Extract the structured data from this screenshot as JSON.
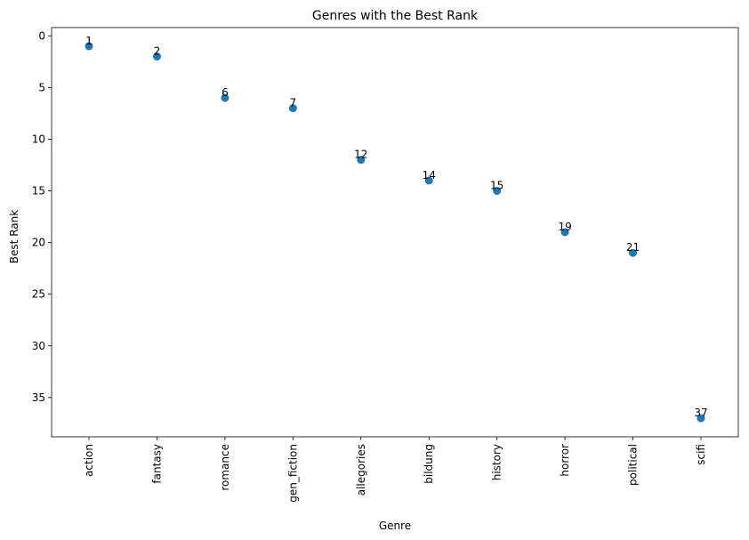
{
  "chart_data": {
    "type": "scatter",
    "title": "Genres with the Best Rank",
    "xlabel": "Genre",
    "ylabel": "Best Rank",
    "categories": [
      "action",
      "fantasy",
      "romance",
      "gen_fiction",
      "allegories",
      "bildung",
      "history",
      "horror",
      "political",
      "scifi"
    ],
    "values": [
      1,
      2,
      6,
      7,
      12,
      14,
      15,
      19,
      21,
      37
    ],
    "ylim": [
      38.8,
      -0.8
    ],
    "y_inverted": true,
    "yticks": [
      0,
      5,
      10,
      15,
      20,
      25,
      30,
      35
    ],
    "xtick_rotation": "vertical",
    "grid": false,
    "legend": "none",
    "point_labels": true,
    "marker_color": "#1f77b4"
  }
}
